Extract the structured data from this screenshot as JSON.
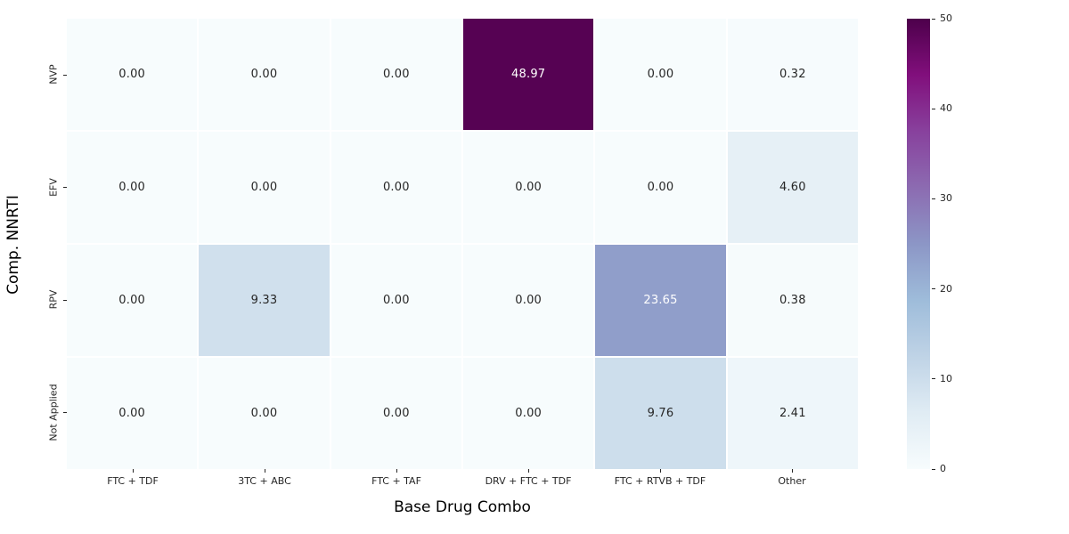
{
  "chart_data": {
    "type": "heatmap",
    "title": "",
    "xlabel": "Base Drug Combo",
    "ylabel": "Comp. NNRTI",
    "x_categories": [
      "FTC + TDF",
      "3TC + ABC",
      "FTC + TAF",
      "DRV + FTC + TDF",
      "FTC + RTVB + TDF",
      "Other"
    ],
    "y_categories": [
      "NVP",
      "EFV",
      "RPV",
      "Not Applied"
    ],
    "values": [
      [
        0.0,
        0.0,
        0.0,
        48.97,
        0.0,
        0.32
      ],
      [
        0.0,
        0.0,
        0.0,
        0.0,
        0.0,
        4.6
      ],
      [
        0.0,
        9.33,
        0.0,
        0.0,
        23.65,
        0.38
      ],
      [
        0.0,
        0.0,
        0.0,
        0.0,
        9.76,
        2.41
      ]
    ],
    "annotation_decimals": 2,
    "vmin": 0,
    "vmax": 50,
    "colormap": "BuPu",
    "colormap_stops": [
      "#f7fcfd",
      "#e0ecf4",
      "#bfd3e6",
      "#9ebcda",
      "#8c96c6",
      "#8c6bb1",
      "#88419d",
      "#810f7c",
      "#4d004b"
    ],
    "colorbar_ticks": [
      0,
      10,
      20,
      30,
      40,
      50
    ],
    "grid_line_color": "#ffffff",
    "background_color": "#ffffff",
    "tick_color": "#262626",
    "annotation_color_dark": "#262626",
    "annotation_color_light": "#ffffff",
    "legend_position": "right-colorbar",
    "grid_on": false
  }
}
